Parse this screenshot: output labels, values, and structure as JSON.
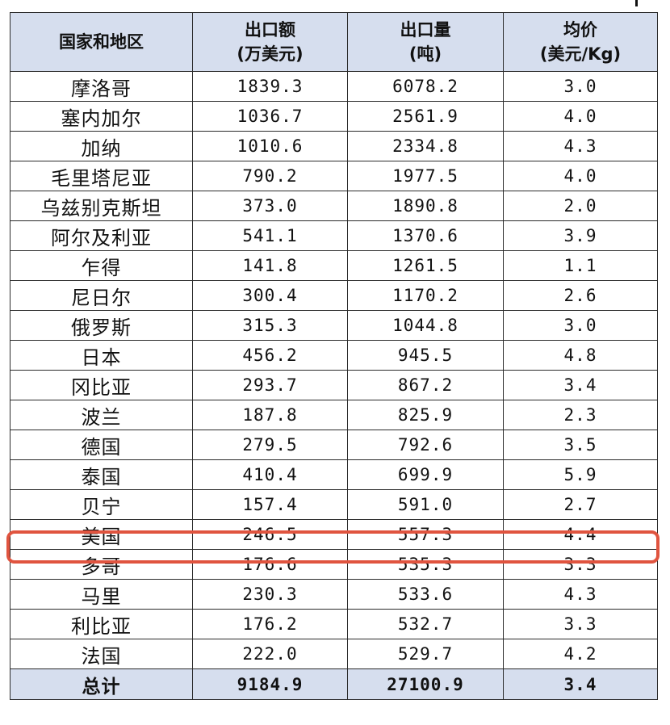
{
  "table": {
    "headers": {
      "country": [
        "国家和地区"
      ],
      "value": [
        "出口额",
        "(万美元)"
      ],
      "volume": [
        "出口量",
        "(吨)"
      ],
      "price": [
        "均价",
        "(美元/Kg)"
      ]
    },
    "rows": [
      {
        "country": "摩洛哥",
        "value": "1839.3",
        "volume": "6078.2",
        "price": "3.0"
      },
      {
        "country": "塞内加尔",
        "value": "1036.7",
        "volume": "2561.9",
        "price": "4.0"
      },
      {
        "country": "加纳",
        "value": "1010.6",
        "volume": "2334.8",
        "price": "4.3"
      },
      {
        "country": "毛里塔尼亚",
        "value": "790.2",
        "volume": "1977.5",
        "price": "4.0"
      },
      {
        "country": "乌兹别克斯坦",
        "value": "373.0",
        "volume": "1890.8",
        "price": "2.0"
      },
      {
        "country": "阿尔及利亚",
        "value": "541.1",
        "volume": "1370.6",
        "price": "3.9"
      },
      {
        "country": "乍得",
        "value": "141.8",
        "volume": "1261.5",
        "price": "1.1"
      },
      {
        "country": "尼日尔",
        "value": "300.4",
        "volume": "1170.2",
        "price": "2.6"
      },
      {
        "country": "俄罗斯",
        "value": "315.3",
        "volume": "1044.8",
        "price": "3.0"
      },
      {
        "country": "日本",
        "value": "456.2",
        "volume": "945.5",
        "price": "4.8"
      },
      {
        "country": "冈比亚",
        "value": "293.7",
        "volume": "867.2",
        "price": "3.4"
      },
      {
        "country": "波兰",
        "value": "187.8",
        "volume": "825.9",
        "price": "2.3"
      },
      {
        "country": "德国",
        "value": "279.5",
        "volume": "792.6",
        "price": "3.5"
      },
      {
        "country": "泰国",
        "value": "410.4",
        "volume": "699.9",
        "price": "5.9"
      },
      {
        "country": "贝宁",
        "value": "157.4",
        "volume": "591.0",
        "price": "2.7"
      },
      {
        "country": "美国",
        "value": "246.5",
        "volume": "557.3",
        "price": "4.4"
      },
      {
        "country": "多哥",
        "value": "176.6",
        "volume": "535.3",
        "price": "3.3"
      },
      {
        "country": "马里",
        "value": "230.3",
        "volume": "533.6",
        "price": "4.3"
      },
      {
        "country": "利比亚",
        "value": "176.2",
        "volume": "532.7",
        "price": "3.3"
      },
      {
        "country": "法国",
        "value": "222.0",
        "volume": "529.7",
        "price": "4.2"
      }
    ],
    "total": {
      "country": "总计",
      "value": "9184.9",
      "volume": "27100.9",
      "price": "3.4"
    },
    "highlighted_row": "美国"
  },
  "colors": {
    "header_fill": "#d6deee",
    "total_fill": "#d6deee",
    "highlight_border": "#e0543f",
    "grid_line": "#2b2b2b"
  }
}
